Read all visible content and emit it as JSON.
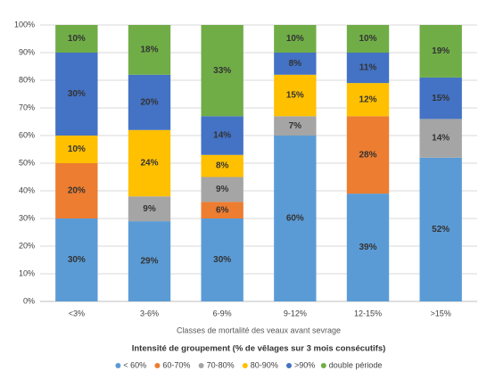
{
  "chart_data": {
    "type": "stacked_bar_percent",
    "x_label": "Classes de mortalité des veaux avant sevrage",
    "legend_title": "Intensité de groupement (% de vêlages  sur 3 mois consécutifs)",
    "categories": [
      "<3%",
      "3-6%",
      "6-9%",
      "9-12%",
      "12-15%",
      ">15%"
    ],
    "series": [
      {
        "name": "< 60%",
        "color": "#5b9bd5",
        "values": [
          30,
          29,
          30,
          60,
          39,
          52
        ],
        "value_labels": [
          "30%",
          "29%",
          "30%",
          "60%",
          "39%",
          "52%"
        ]
      },
      {
        "name": "60-70%",
        "color": "#ed7d31",
        "values": [
          20,
          null,
          6,
          null,
          28,
          null
        ],
        "value_labels": [
          "20%",
          null,
          "6%",
          null,
          "28%",
          null
        ]
      },
      {
        "name": "70-80%",
        "color": "#a5a5a5",
        "values": [
          null,
          9,
          9,
          7,
          null,
          14
        ],
        "value_labels": [
          null,
          "9%",
          "9%",
          "7%",
          null,
          "14%"
        ]
      },
      {
        "name": "80-90%",
        "color": "#ffc000",
        "values": [
          10,
          24,
          8,
          15,
          12,
          null
        ],
        "value_labels": [
          "10%",
          "24%",
          "8%",
          "15%",
          "12%",
          null
        ]
      },
      {
        "name": ">90%",
        "color": "#4472c4",
        "values": [
          30,
          20,
          14,
          8,
          11,
          15
        ],
        "value_labels": [
          "30%",
          "20%",
          "14%",
          "8%",
          "11%",
          "15%"
        ]
      },
      {
        "name": "double période",
        "color": "#70ad47",
        "values": [
          10,
          18,
          33,
          10,
          10,
          19
        ],
        "value_labels": [
          "10%",
          "18%",
          "33%",
          "10%",
          "10%",
          "19%"
        ]
      }
    ],
    "ylim": [
      0,
      100
    ],
    "yticks": [
      {
        "value": 0,
        "label": "0%"
      },
      {
        "value": 10,
        "label": "10%"
      },
      {
        "value": 20,
        "label": "20%"
      },
      {
        "value": 30,
        "label": "30%"
      },
      {
        "value": 40,
        "label": "40%"
      },
      {
        "value": 50,
        "label": "50%"
      },
      {
        "value": 60,
        "label": "60%"
      },
      {
        "value": 70,
        "label": "70%"
      },
      {
        "value": 80,
        "label": "80%"
      },
      {
        "value": 90,
        "label": "90%"
      },
      {
        "value": 100,
        "label": "100%"
      }
    ],
    "grid": true,
    "legend": "bottom"
  }
}
